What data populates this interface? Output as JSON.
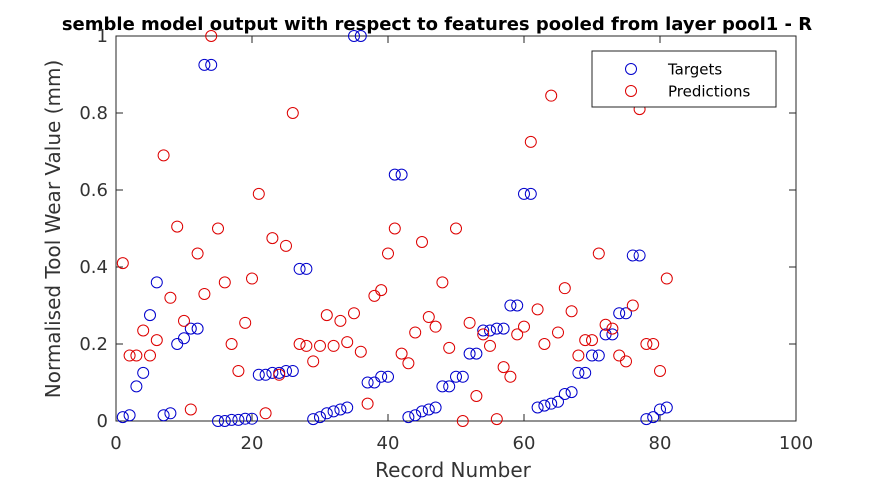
{
  "chart_data": {
    "type": "scatter",
    "title": "semble model output with respect to features pooled from layer pool1 - R",
    "xlabel": "Record Number",
    "ylabel": "Normalised Tool Wear Value (mm)",
    "xlim": [
      0,
      100
    ],
    "ylim": [
      0,
      1
    ],
    "xticks": [
      "0",
      "20",
      "40",
      "60",
      "80",
      "100"
    ],
    "yticks": [
      "0",
      "0.2",
      "0.4",
      "0.6",
      "0.8",
      "1"
    ],
    "grid": false,
    "legend_position": "top-right",
    "x": [
      1,
      2,
      3,
      4,
      5,
      6,
      7,
      8,
      9,
      10,
      11,
      12,
      13,
      14,
      15,
      16,
      17,
      18,
      19,
      20,
      21,
      22,
      23,
      24,
      25,
      26,
      27,
      28,
      29,
      30,
      31,
      32,
      33,
      34,
      35,
      36,
      37,
      38,
      39,
      40,
      41,
      42,
      43,
      44,
      45,
      46,
      47,
      48,
      49,
      50,
      51,
      52,
      53,
      54,
      55,
      56,
      57,
      58,
      59,
      60,
      61,
      62,
      63,
      64,
      65,
      66,
      67,
      68,
      69,
      70,
      71,
      72,
      73,
      74,
      75,
      76,
      77,
      78,
      79,
      80,
      81
    ],
    "series": [
      {
        "name": "Targets",
        "color": "#0000cc",
        "values": [
          0.01,
          0.015,
          0.09,
          0.125,
          0.275,
          0.36,
          0.015,
          0.02,
          0.2,
          0.215,
          0.24,
          0.24,
          0.925,
          0.925,
          0.0,
          0.0,
          0.003,
          0.003,
          0.006,
          0.006,
          0.12,
          0.12,
          0.125,
          0.125,
          0.13,
          0.13,
          0.395,
          0.395,
          0.005,
          0.01,
          0.02,
          0.025,
          0.03,
          0.035,
          1.0,
          1.0,
          0.1,
          0.1,
          0.115,
          0.115,
          0.64,
          0.64,
          0.01,
          0.015,
          0.025,
          0.03,
          0.035,
          0.09,
          0.09,
          0.115,
          0.115,
          0.175,
          0.175,
          0.235,
          0.235,
          0.24,
          0.24,
          0.3,
          0.3,
          0.59,
          0.59,
          0.035,
          0.04,
          0.045,
          0.05,
          0.07,
          0.075,
          0.125,
          0.125,
          0.17,
          0.17,
          0.225,
          0.225,
          0.28,
          0.28,
          0.43,
          0.43,
          0.005,
          0.01,
          0.03,
          0.035
        ]
      },
      {
        "name": "Predictions",
        "color": "#dd0000",
        "values": [
          0.41,
          0.17,
          0.17,
          0.235,
          0.17,
          0.21,
          0.69,
          0.32,
          0.505,
          0.26,
          0.03,
          0.435,
          0.33,
          1.0,
          0.5,
          0.36,
          0.2,
          0.13,
          0.255,
          0.37,
          0.59,
          0.02,
          0.475,
          0.12,
          0.455,
          0.8,
          0.2,
          0.195,
          0.155,
          0.195,
          0.275,
          0.195,
          0.26,
          0.205,
          0.28,
          0.18,
          0.045,
          0.325,
          0.34,
          0.435,
          0.5,
          0.175,
          0.15,
          0.23,
          0.465,
          0.27,
          0.245,
          0.36,
          0.19,
          0.5,
          0.0,
          0.255,
          0.065,
          0.225,
          0.195,
          0.005,
          0.14,
          0.115,
          0.225,
          0.245,
          0.725,
          0.29,
          0.2,
          0.845,
          0.23,
          0.345,
          0.285,
          0.17,
          0.21,
          0.21,
          0.435,
          0.25,
          0.24,
          0.17,
          0.155,
          0.3,
          0.81,
          0.2,
          0.2,
          0.13,
          0.37
        ]
      }
    ]
  }
}
